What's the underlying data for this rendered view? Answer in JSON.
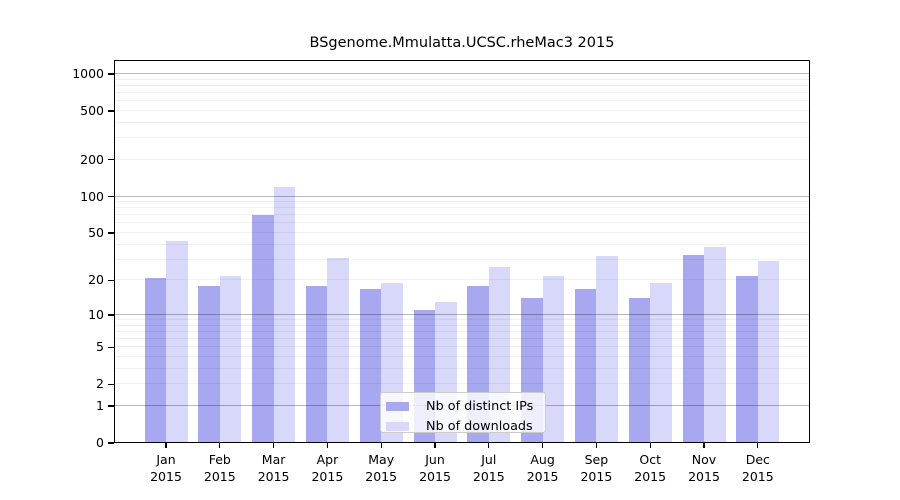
{
  "chart_data": {
    "type": "bar",
    "title": "BSgenome.Mmulatta.UCSC.rheMac3 2015",
    "categories": [
      "Jan",
      "Feb",
      "Mar",
      "Apr",
      "May",
      "Jun",
      "Jul",
      "Aug",
      "Sep",
      "Oct",
      "Nov",
      "Dec"
    ],
    "x_sublabel": "2015",
    "series": [
      {
        "name": "Nb of distinct IPs",
        "color": "#a8a8f0",
        "values": [
          21,
          18,
          70,
          18,
          17,
          11,
          18,
          14,
          17,
          14,
          33,
          22
        ]
      },
      {
        "name": "Nb of downloads",
        "color": "#d8d8fa",
        "values": [
          43,
          22,
          120,
          31,
          19,
          13,
          26,
          22,
          32,
          19,
          38,
          29
        ]
      }
    ],
    "yscale": "log10(value+1)",
    "yticks": [
      0,
      1,
      2,
      5,
      10,
      20,
      50,
      100,
      200,
      500,
      1000
    ],
    "ylim": [
      0,
      1250
    ],
    "grid": "horizontal log grid: major lines at 1,10,100,1000; faint minor lines at 2-9, 20-90, 200-900",
    "legend_position": "inside bottom-center",
    "legend_entries": [
      "Nb of distinct IPs",
      "Nb of downloads"
    ]
  }
}
